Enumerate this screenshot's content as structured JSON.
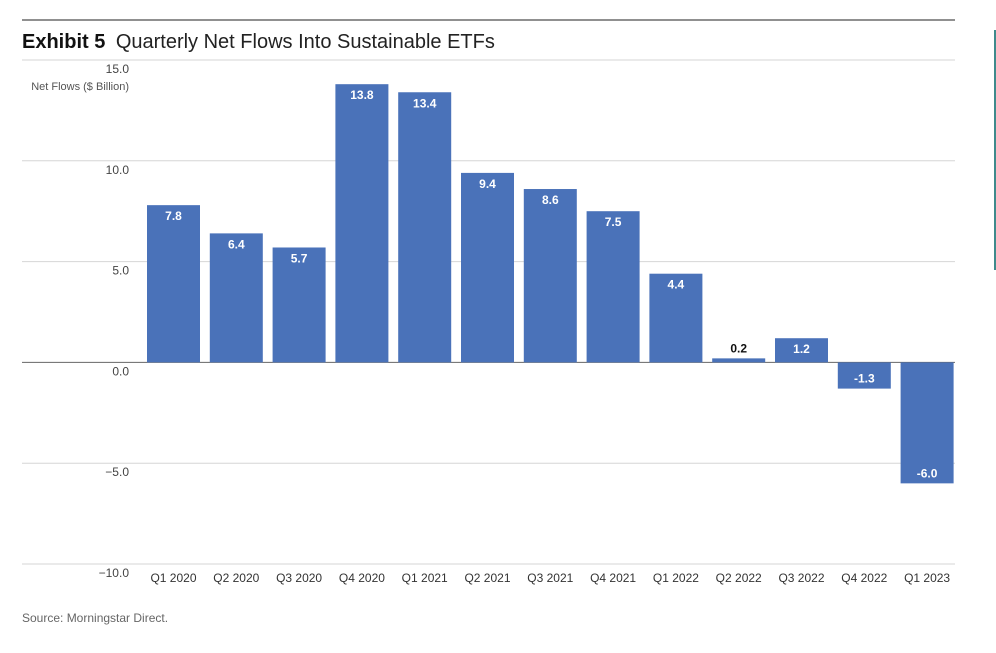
{
  "exhibit_label": "Exhibit 5",
  "title": "Quarterly Net Flows Into Sustainable ETFs",
  "source": "Source: Morningstar Direct.",
  "colors": {
    "bar": "#4a72b9",
    "grid": "#d6d6d6",
    "axis": "#666666"
  },
  "chart_data": {
    "type": "bar",
    "categories": [
      "Q1 2020",
      "Q2 2020",
      "Q3 2020",
      "Q4 2020",
      "Q1 2021",
      "Q2 2021",
      "Q3 2021",
      "Q4 2021",
      "Q1 2022",
      "Q2 2022",
      "Q3 2022",
      "Q4 2022",
      "Q1 2023"
    ],
    "values": [
      7.8,
      6.4,
      5.7,
      13.8,
      13.4,
      9.4,
      8.6,
      7.5,
      4.4,
      0.2,
      1.2,
      -1.3,
      -6.0
    ],
    "value_labels": [
      "7.8",
      "6.4",
      "5.7",
      "13.8",
      "13.4",
      "9.4",
      "8.6",
      "7.5",
      "4.4",
      "0.2",
      "1.2",
      "-1.3",
      "-6.0"
    ],
    "ylabel": "Net Flows ($ Billion)",
    "ylim": [
      -10,
      15
    ],
    "yticks": [
      15,
      10,
      5,
      0,
      -5,
      -10
    ],
    "ytick_labels": [
      "15.0",
      "10.0",
      "5.0",
      "0.0",
      "−5.0",
      "−10.0"
    ],
    "grid": true,
    "legend": "none"
  }
}
